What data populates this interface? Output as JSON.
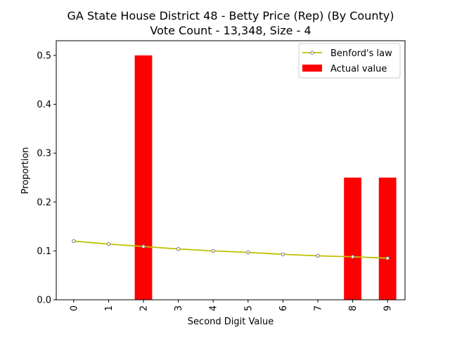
{
  "chart_data": {
    "type": "bar",
    "title": "GA State House District 48 - Betty Price (Rep) (By County)",
    "subtitle": "Vote Count - 13,348, Size - 4",
    "xlabel": "Second Digit Value",
    "ylabel": "Proportion",
    "categories": [
      "0",
      "1",
      "2",
      "3",
      "4",
      "5",
      "6",
      "7",
      "8",
      "9"
    ],
    "ylim": [
      0,
      0.53
    ],
    "yticks": [
      "0.0",
      "0.1",
      "0.2",
      "0.3",
      "0.4",
      "0.5"
    ],
    "grid": false,
    "legend_position": "top-right",
    "series": [
      {
        "name": "Benford's law",
        "kind": "line",
        "color": "#bfbf00",
        "values": [
          0.12,
          0.114,
          0.109,
          0.104,
          0.1,
          0.097,
          0.093,
          0.09,
          0.088,
          0.085
        ]
      },
      {
        "name": "Actual value",
        "kind": "bar",
        "color": "#ff0000",
        "values": [
          0,
          0,
          0.5,
          0,
          0,
          0,
          0,
          0,
          0.25,
          0.25
        ]
      }
    ]
  }
}
